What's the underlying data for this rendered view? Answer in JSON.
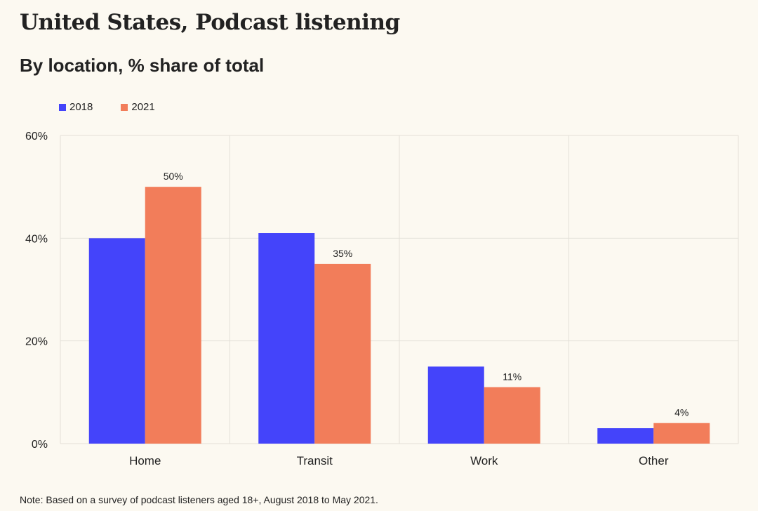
{
  "header": {
    "title": "United States, Podcast listening",
    "subtitle": "By location, % share of total"
  },
  "footer": {
    "note": "Note: Based on a survey of podcast listeners aged 18+, August 2018 to May 2021."
  },
  "colors": {
    "series_2018": "#4444FA",
    "series_2021": "#F27D5A",
    "grid": "#E3E0D8",
    "background": "#FCF9F1"
  },
  "chart_data": {
    "type": "bar",
    "title": "United States, Podcast listening",
    "subtitle": "By location, % share of total",
    "xlabel": "",
    "ylabel": "",
    "categories": [
      "Home",
      "Transit",
      "Work",
      "Other"
    ],
    "series": [
      {
        "name": "2018",
        "values": [
          40,
          41,
          15,
          3
        ],
        "color": "#4444FA"
      },
      {
        "name": "2021",
        "values": [
          50,
          35,
          11,
          4
        ],
        "color": "#F27D5A"
      }
    ],
    "data_labels": {
      "series": "2021",
      "labels": [
        "50%",
        "35%",
        "11%",
        "4%"
      ]
    },
    "ylim": [
      0,
      60
    ],
    "yticks": [
      0,
      20,
      40,
      60
    ],
    "ytick_labels": [
      "0%",
      "20%",
      "40%",
      "60%"
    ],
    "grid": true,
    "legend": {
      "position": "top-left",
      "entries": [
        "2018",
        "2021"
      ]
    }
  }
}
